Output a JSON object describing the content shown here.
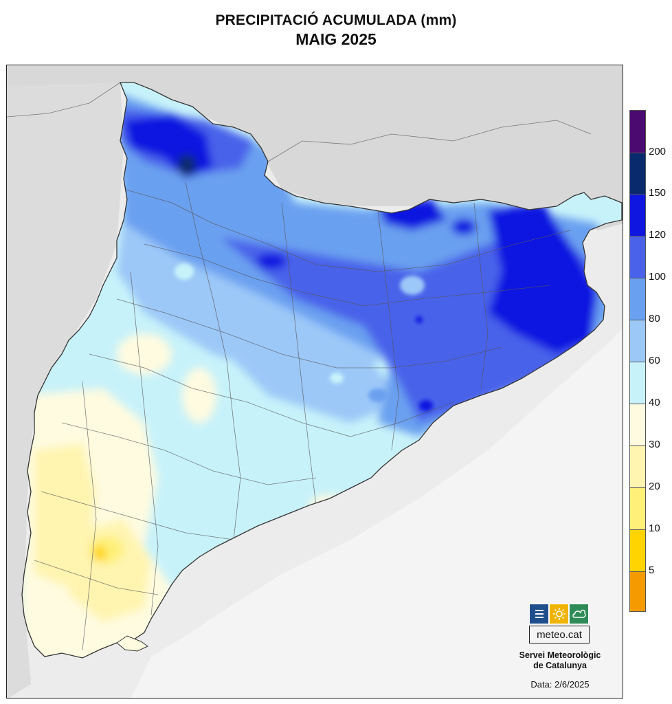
{
  "title": {
    "line1": "PRECIPITACIÓ ACUMULADA (mm)",
    "line2": "MAIG 2025"
  },
  "legend": {
    "unit": "mm",
    "labels": [
      "200",
      "150",
      "120",
      "100",
      "80",
      "60",
      "40",
      "30",
      "20",
      "10",
      "5"
    ],
    "classes": [
      {
        "range": ">200",
        "color": "#4a0a70"
      },
      {
        "range": "150-200",
        "color": "#0a2a6e"
      },
      {
        "range": "120-150",
        "color": "#0f16e0"
      },
      {
        "range": "100-120",
        "color": "#4a62ea"
      },
      {
        "range": "80-100",
        "color": "#6aa0f0"
      },
      {
        "range": "60-80",
        "color": "#9cc8f8"
      },
      {
        "range": "40-60",
        "color": "#c8f2fa"
      },
      {
        "range": "30-40",
        "color": "#fefbe0"
      },
      {
        "range": "20-30",
        "color": "#fff4b0"
      },
      {
        "range": "10-20",
        "color": "#fff07a"
      },
      {
        "range": "5-10",
        "color": "#ffd400"
      },
      {
        "range": "0-5",
        "color": "#f59a00"
      }
    ]
  },
  "logo": {
    "text": "meteo.cat",
    "icons": [
      "lines-icon",
      "sun-icon",
      "cloud-icon"
    ],
    "colors": {
      "blue": "#1f4e8c",
      "yellow": "#f0b400",
      "green": "#2e8b57"
    }
  },
  "organization": {
    "line1": "Servei Meteorològic",
    "line2": "de Catalunya"
  },
  "date": "Data: 2/6/2025",
  "map": {
    "region": "Catalunya",
    "variable": "precipitació acumulada",
    "period": "maig 2025"
  }
}
